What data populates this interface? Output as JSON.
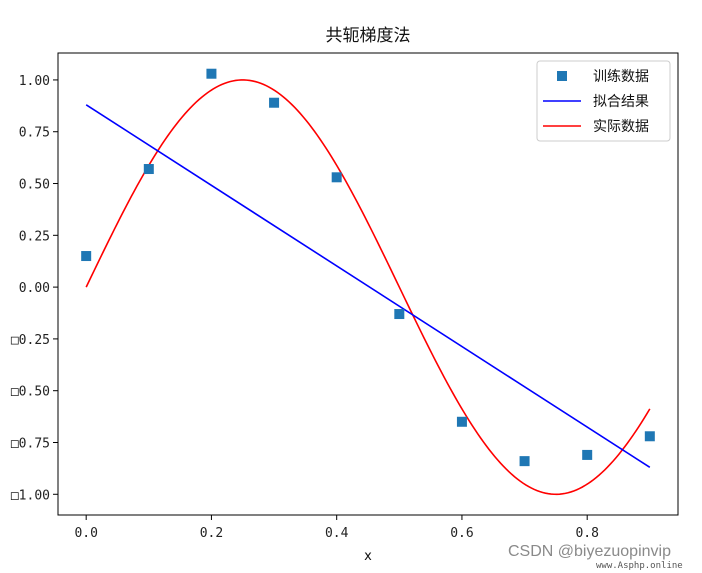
{
  "chart_data": {
    "type": "line",
    "title": "共轭梯度法",
    "xlabel": "x",
    "ylabel": "",
    "xlim": [
      -0.045,
      0.945
    ],
    "ylim": [
      -1.1,
      1.13
    ],
    "xticks": [
      0.0,
      0.2,
      0.4,
      0.6,
      0.8
    ],
    "xtick_labels": [
      "0.0",
      "0.2",
      "0.4",
      "0.6",
      "0.8"
    ],
    "yticks": [
      1.0,
      0.75,
      0.5,
      0.25,
      0.0,
      -0.25,
      -0.5,
      -0.75,
      -1.0
    ],
    "ytick_labels": [
      "1.00",
      "0.75",
      "0.50",
      "0.25",
      "0.00",
      "□0.25",
      "□0.50",
      "□0.75",
      "□1.00"
    ],
    "grid": false,
    "legend_position": "top-right",
    "series": [
      {
        "name": "训练数据",
        "kind": "scatter",
        "marker": "square",
        "color": "#1f77b4",
        "x": [
          0.0,
          0.1,
          0.2,
          0.3,
          0.4,
          0.5,
          0.6,
          0.7,
          0.8,
          0.9
        ],
        "y": [
          0.15,
          0.57,
          1.03,
          0.89,
          0.53,
          -0.13,
          -0.65,
          -0.84,
          -0.81,
          -0.72
        ]
      },
      {
        "name": "拟合结果",
        "kind": "line",
        "color": "#0000ff",
        "x": [
          0.0,
          0.9
        ],
        "y": [
          0.88,
          -0.87
        ]
      },
      {
        "name": "实际数据",
        "kind": "line",
        "function": "sin(2*pi*x)",
        "color": "#ff0000",
        "x_range": [
          0.0,
          0.9
        ]
      }
    ]
  },
  "watermark": "CSDN @biyezuopinvip",
  "watermark_small": "www.Asphp.online"
}
